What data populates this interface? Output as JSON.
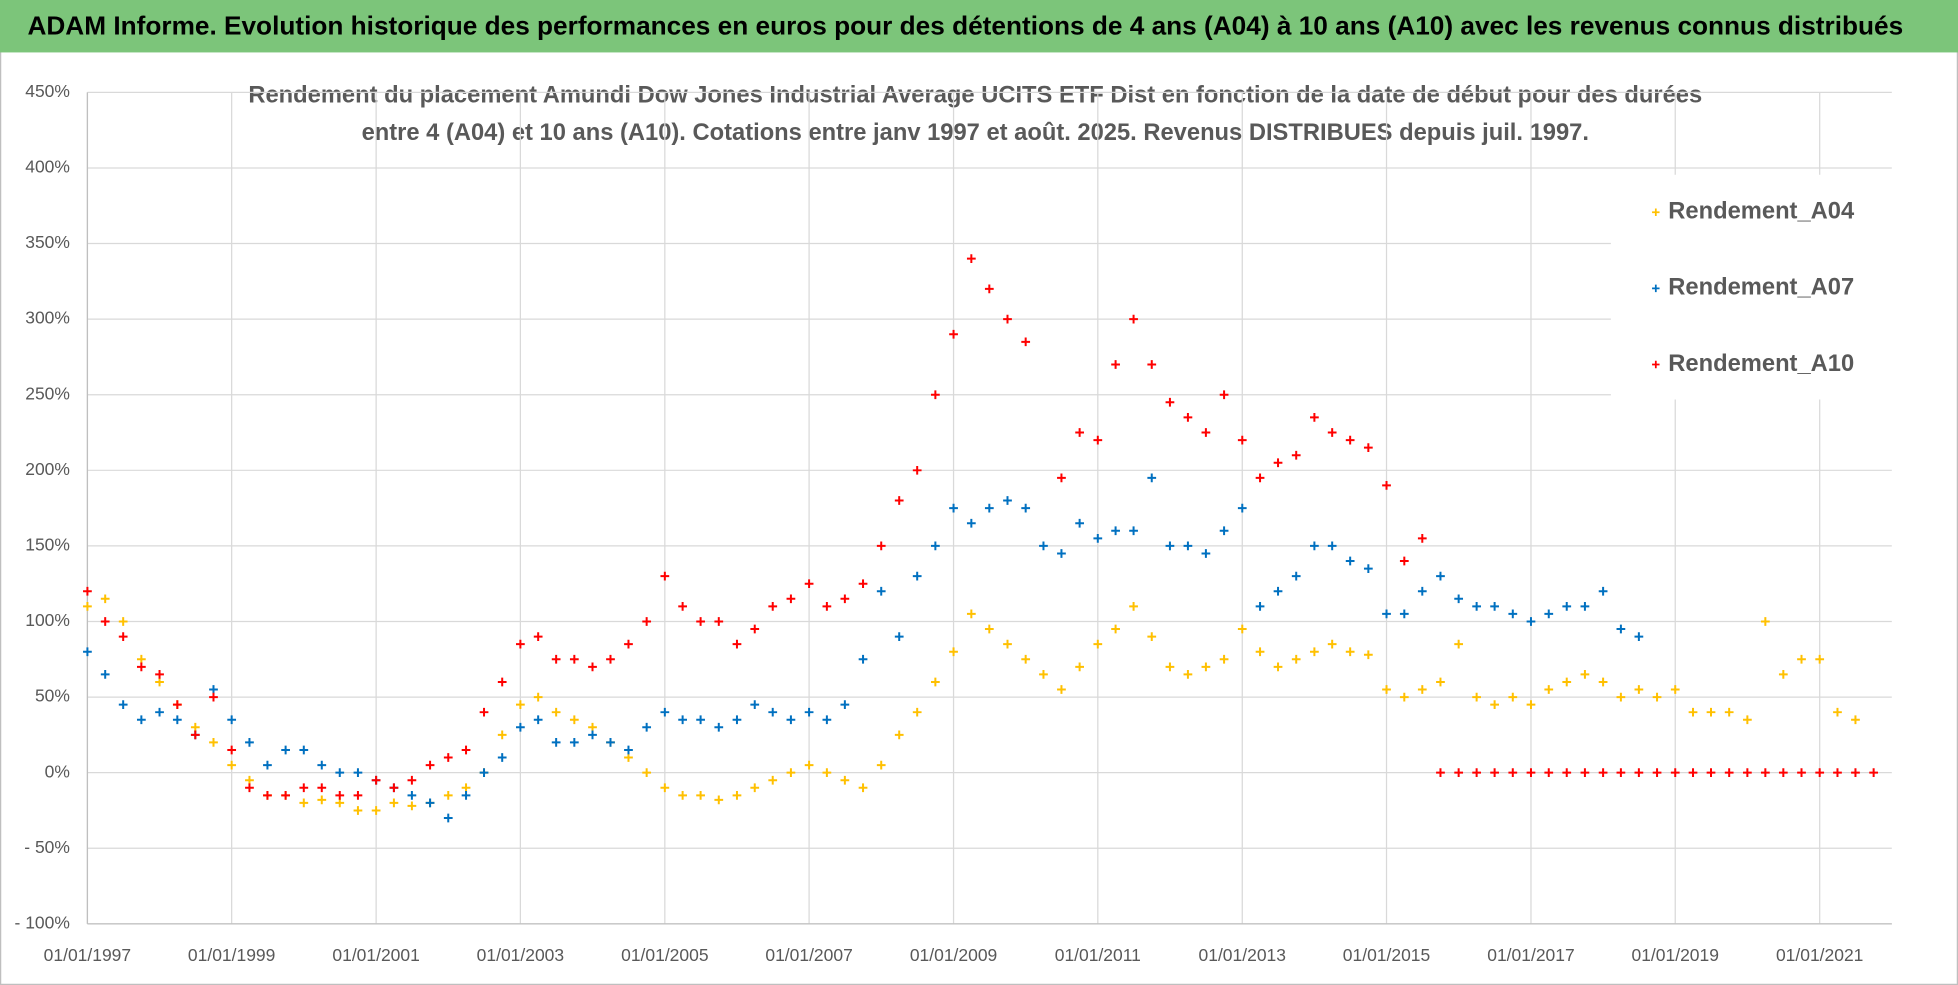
{
  "header": {
    "title": "ADAM Informe. Evolution historique des performances en euros pour des détentions de 4 ans (A04) à 10 ans (A10) avec les revenus connus distribués"
  },
  "chart_data": {
    "type": "scatter",
    "title": [
      "Rendement du placement Amundi Dow Jones Industrial Average UCITS ETF Dist en fonction de la date de début pour des durées",
      "entre 4 (A04) et 10 ans (A10).  Cotations entre janv 1997 et août. 2025. Revenus DISTRIBUES depuis juil. 1997."
    ],
    "x": [
      "01/01/1997",
      "01/04/1997",
      "01/07/1997",
      "01/10/1997",
      "01/01/1998",
      "01/04/1998",
      "01/07/1998",
      "01/10/1998",
      "01/01/1999",
      "01/04/1999",
      "01/07/1999",
      "01/10/1999",
      "01/01/2000",
      "01/04/2000",
      "01/07/2000",
      "01/10/2000",
      "01/01/2001",
      "01/04/2001",
      "01/07/2001",
      "01/10/2001",
      "01/01/2002",
      "01/04/2002",
      "01/07/2002",
      "01/10/2002",
      "01/01/2003",
      "01/04/2003",
      "01/07/2003",
      "01/10/2003",
      "01/01/2004",
      "01/04/2004",
      "01/07/2004",
      "01/10/2004",
      "01/01/2005",
      "01/04/2005",
      "01/07/2005",
      "01/10/2005",
      "01/01/2006",
      "01/04/2006",
      "01/07/2006",
      "01/10/2006",
      "01/01/2007",
      "01/04/2007",
      "01/07/2007",
      "01/10/2007",
      "01/01/2008",
      "01/04/2008",
      "01/07/2008",
      "01/10/2008",
      "01/01/2009",
      "01/04/2009",
      "01/07/2009",
      "01/10/2009",
      "01/01/2010",
      "01/04/2010",
      "01/07/2010",
      "01/10/2010",
      "01/01/2011",
      "01/04/2011",
      "01/07/2011",
      "01/10/2011",
      "01/01/2012",
      "01/04/2012",
      "01/07/2012",
      "01/10/2012",
      "01/01/2013",
      "01/04/2013",
      "01/07/2013",
      "01/10/2013",
      "01/01/2014",
      "01/04/2014",
      "01/07/2014",
      "01/10/2014",
      "01/01/2015",
      "01/04/2015",
      "01/07/2015",
      "01/10/2015",
      "01/01/2016",
      "01/04/2016",
      "01/07/2016",
      "01/10/2016",
      "01/01/2017",
      "01/04/2017",
      "01/07/2017",
      "01/10/2017",
      "01/01/2018",
      "01/04/2018",
      "01/07/2018",
      "01/10/2018",
      "01/01/2019",
      "01/04/2019",
      "01/07/2019",
      "01/10/2019",
      "01/01/2020",
      "01/04/2020",
      "01/07/2020",
      "01/10/2020",
      "01/01/2021",
      "01/04/2021",
      "01/07/2021",
      "01/10/2021"
    ],
    "series": [
      {
        "name": "Rendement_A04",
        "color": "#ffc000",
        "values": [
          110,
          115,
          100,
          75,
          60,
          45,
          30,
          20,
          5,
          -5,
          -15,
          -15,
          -20,
          -18,
          -20,
          -25,
          -25,
          -20,
          -22,
          -20,
          -15,
          -10,
          0,
          25,
          45,
          50,
          40,
          35,
          30,
          20,
          10,
          0,
          -10,
          -15,
          -15,
          -18,
          -15,
          -10,
          -5,
          0,
          5,
          0,
          -5,
          -10,
          5,
          25,
          40,
          60,
          80,
          105,
          95,
          85,
          75,
          65,
          55,
          70,
          85,
          95,
          110,
          90,
          70,
          65,
          70,
          75,
          95,
          80,
          70,
          75,
          80,
          85,
          80,
          78,
          55,
          50,
          55,
          60,
          85,
          50,
          45,
          50,
          45,
          55,
          60,
          65,
          60,
          50,
          55,
          50,
          55,
          40,
          40,
          40,
          35,
          100,
          65,
          75,
          75,
          40,
          35,
          null
        ]
      },
      {
        "name": "Rendement_A07",
        "color": "#0070c0",
        "values": [
          80,
          65,
          45,
          35,
          40,
          35,
          25,
          55,
          35,
          20,
          5,
          15,
          15,
          5,
          0,
          0,
          -5,
          -10,
          -15,
          -20,
          -30,
          -15,
          0,
          10,
          30,
          35,
          20,
          20,
          25,
          20,
          15,
          30,
          40,
          35,
          35,
          30,
          35,
          45,
          40,
          35,
          40,
          35,
          45,
          75,
          120,
          90,
          130,
          150,
          175,
          165,
          175,
          180,
          175,
          150,
          145,
          165,
          155,
          160,
          160,
          195,
          150,
          150,
          145,
          160,
          175,
          110,
          120,
          130,
          150,
          150,
          140,
          135,
          105,
          105,
          120,
          130,
          115,
          110,
          110,
          105,
          100,
          105,
          110,
          110,
          120,
          95,
          90,
          null,
          null,
          null,
          null,
          null,
          null,
          null,
          null,
          null,
          null,
          null,
          null,
          null
        ]
      },
      {
        "name": "Rendement_A10",
        "color": "#ff0000",
        "values": [
          120,
          100,
          90,
          70,
          65,
          45,
          25,
          50,
          15,
          -10,
          -15,
          -15,
          -10,
          -10,
          -15,
          -15,
          -5,
          -10,
          -5,
          5,
          10,
          15,
          40,
          60,
          85,
          90,
          75,
          75,
          70,
          75,
          85,
          100,
          130,
          110,
          100,
          100,
          85,
          95,
          110,
          115,
          125,
          110,
          115,
          125,
          150,
          180,
          200,
          250,
          290,
          340,
          320,
          300,
          285,
          null,
          195,
          225,
          220,
          270,
          300,
          270,
          245,
          235,
          225,
          250,
          220,
          195,
          205,
          210,
          235,
          225,
          220,
          215,
          190,
          140,
          155,
          0,
          0,
          0,
          0,
          0,
          0,
          0,
          0,
          0,
          0,
          0,
          0,
          0,
          0,
          0,
          0,
          0,
          0,
          0,
          0,
          0,
          0,
          0,
          0,
          0
        ]
      }
    ],
    "xlim": [
      "01/01/1997",
      "01/01/2022"
    ],
    "xticks": [
      "01/01/1997",
      "01/01/1999",
      "01/01/2001",
      "01/01/2003",
      "01/01/2005",
      "01/01/2007",
      "01/01/2009",
      "01/01/2011",
      "01/01/2013",
      "01/01/2015",
      "01/01/2017",
      "01/01/2019",
      "01/01/2021"
    ],
    "ylim": [
      -100,
      450
    ],
    "yticks": [
      {
        "value": -100,
        "label": "- 100%"
      },
      {
        "value": -50,
        "label": "- 50%"
      },
      {
        "value": 0,
        "label": "0%"
      },
      {
        "value": 50,
        "label": "50%"
      },
      {
        "value": 100,
        "label": "100%"
      },
      {
        "value": 150,
        "label": "150%"
      },
      {
        "value": 200,
        "label": "200%"
      },
      {
        "value": 250,
        "label": "250%"
      },
      {
        "value": 300,
        "label": "300%"
      },
      {
        "value": 350,
        "label": "350%"
      },
      {
        "value": 400,
        "label": "400%"
      },
      {
        "value": 450,
        "label": "450%"
      }
    ],
    "grid": true,
    "legend": "right"
  }
}
